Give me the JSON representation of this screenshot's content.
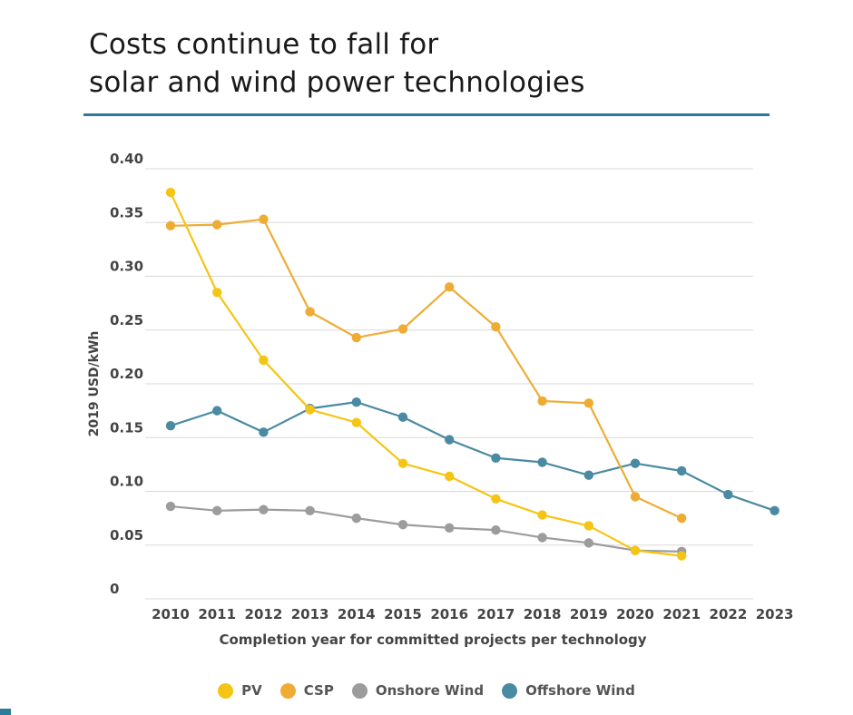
{
  "title_line1": "Costs continue to fall for",
  "title_line2": "solar and wind power technologies",
  "chart_data": {
    "type": "line",
    "title": "Costs continue to fall for solar and wind power technologies",
    "xlabel": "Completion year for committed projects per technology",
    "ylabel": "2019 USD/kWh",
    "categories": [
      "2010",
      "2011",
      "2012",
      "2013",
      "2014",
      "2015",
      "2016",
      "2017",
      "2018",
      "2019",
      "2020",
      "2021",
      "2022",
      "2023"
    ],
    "y_ticks": [
      "0",
      "0.05",
      "0.10",
      "0.15",
      "0.20",
      "0.25",
      "0.30",
      "0.35",
      "0.40"
    ],
    "ylim": [
      0,
      0.4
    ],
    "grid": true,
    "legend_position": "bottom",
    "series": [
      {
        "name": "PV",
        "color": "#f5c515",
        "values": [
          0.378,
          0.285,
          0.222,
          0.176,
          0.164,
          0.126,
          0.114,
          0.093,
          0.078,
          0.068,
          0.045,
          0.04,
          null,
          null
        ]
      },
      {
        "name": "CSP",
        "color": "#eeac35",
        "values": [
          0.347,
          0.348,
          0.353,
          0.267,
          0.243,
          0.251,
          0.29,
          0.253,
          0.184,
          0.182,
          0.095,
          0.075,
          null,
          null
        ]
      },
      {
        "name": "Onshore Wind",
        "color": "#9c9c9c",
        "values": [
          0.086,
          0.082,
          0.083,
          0.082,
          0.075,
          0.069,
          0.066,
          0.064,
          0.057,
          0.052,
          0.045,
          0.044,
          null,
          null
        ]
      },
      {
        "name": "Offshore Wind",
        "color": "#4a8aa2",
        "values": [
          0.161,
          0.175,
          0.155,
          0.177,
          0.183,
          0.169,
          0.148,
          0.131,
          0.127,
          0.115,
          0.126,
          0.119,
          0.097,
          0.082
        ]
      }
    ]
  }
}
